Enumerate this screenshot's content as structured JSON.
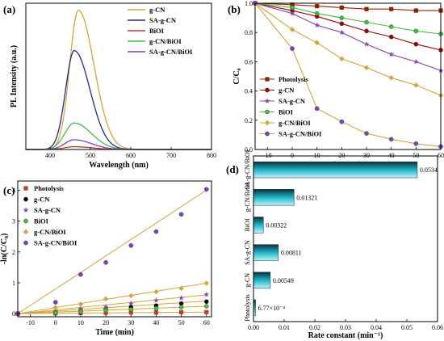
{
  "chart_data": [
    {
      "id": "a",
      "type": "line",
      "panel_label": "(a)",
      "xlabel": "Wavelength (nm)",
      "ylabel": "PL Intensity (a.u.)",
      "xlim": [
        340,
        800
      ],
      "xticks": [
        400,
        500,
        600,
        700,
        800
      ],
      "legend_position": "top-right",
      "series": [
        {
          "name": "g-CN",
          "color": "#d4a437",
          "peak_x": 470,
          "peak_y": 100,
          "width": 55
        },
        {
          "name": "SA-g-CN",
          "color": "#1f2a8a",
          "peak_x": 460,
          "peak_y": 71,
          "width": 55
        },
        {
          "name": "BiOI",
          "color": "#c0392b",
          "peak_x": 460,
          "peak_y": 2,
          "width": 60
        },
        {
          "name": "g-CN/BiOI",
          "color": "#3fbf3f",
          "peak_x": 460,
          "peak_y": 19,
          "width": 60
        },
        {
          "name": "SA-g-CN/BiOI",
          "color": "#7b3fc9",
          "peak_x": 460,
          "peak_y": 7,
          "width": 60
        }
      ]
    },
    {
      "id": "b",
      "type": "line",
      "panel_label": "(b)",
      "xlabel": "Time (min)",
      "ylabel": "C/C₀",
      "xlim": [
        -15,
        60
      ],
      "ylim": [
        0.0,
        1.0
      ],
      "xticks": [
        -10,
        0,
        10,
        20,
        30,
        40,
        50,
        60
      ],
      "yticks": [
        0.0,
        0.2,
        0.4,
        0.6,
        0.8,
        1.0
      ],
      "ytick_labels": [
        "0.0",
        "0.2",
        "0.4",
        "0.6",
        "0.8",
        "1.0"
      ],
      "legend_position": "bottom-left",
      "x": [
        -15,
        0,
        10,
        20,
        30,
        40,
        50,
        60
      ],
      "series": [
        {
          "name": "Photolysis",
          "color": "#8b2500",
          "marker": "square",
          "values": [
            1.0,
            0.99,
            0.98,
            0.97,
            0.96,
            0.96,
            0.95,
            0.95
          ]
        },
        {
          "name": "g-CN",
          "color": "#a00000",
          "marker": "circle",
          "values": [
            1.0,
            0.95,
            0.91,
            0.86,
            0.81,
            0.77,
            0.72,
            0.68
          ]
        },
        {
          "name": "SA-g-CN",
          "color": "#8e44ad",
          "marker": "star",
          "values": [
            1.0,
            0.93,
            0.85,
            0.8,
            0.72,
            0.65,
            0.6,
            0.54
          ]
        },
        {
          "name": "BiOI",
          "color": "#3fbf3f",
          "marker": "circle",
          "values": [
            1.0,
            0.97,
            0.93,
            0.9,
            0.87,
            0.84,
            0.81,
            0.79
          ]
        },
        {
          "name": "g-CN/BiOI",
          "color": "#d4a437",
          "marker": "diamond",
          "values": [
            1.0,
            0.82,
            0.73,
            0.62,
            0.56,
            0.49,
            0.44,
            0.37
          ]
        },
        {
          "name": "SA-g-CN/BiOI",
          "color": "#7b3fc9",
          "marker": "circle",
          "line_color": "#d4a437",
          "values": [
            1.0,
            0.69,
            0.28,
            0.19,
            0.11,
            0.07,
            0.04,
            0.02
          ]
        }
      ]
    },
    {
      "id": "c",
      "type": "scatter",
      "panel_label": "(c)",
      "xlabel": "Time (min)",
      "ylabel": "-ln(C/C₀)",
      "xlim": [
        -15,
        62
      ],
      "ylim": [
        -0.1,
        4.3
      ],
      "xticks": [
        -10,
        0,
        10,
        20,
        30,
        40,
        50,
        60
      ],
      "yticks": [
        0,
        1,
        2,
        3,
        4
      ],
      "legend_position": "top-left",
      "fit_color": "#d4a437",
      "x": [
        -15,
        0,
        10,
        20,
        30,
        40,
        50,
        60
      ],
      "series": [
        {
          "name": "Photolysis",
          "color": "#c0392b",
          "marker": "square",
          "slope": 0.000677,
          "values": [
            0,
            0.01,
            0.02,
            0.03,
            0.04,
            0.04,
            0.05,
            0.05
          ]
        },
        {
          "name": "g-CN",
          "color": "#000000",
          "marker": "circle",
          "slope": 0.00549,
          "values": [
            0,
            0.05,
            0.09,
            0.15,
            0.21,
            0.26,
            0.33,
            0.39
          ]
        },
        {
          "name": "SA-g-CN",
          "color": "#8e44ad",
          "marker": "star",
          "slope": 0.00811,
          "values": [
            0,
            0.07,
            0.16,
            0.22,
            0.33,
            0.43,
            0.51,
            0.62
          ]
        },
        {
          "name": "BiOI",
          "color": "#3fbf3f",
          "marker": "circle",
          "slope": 0.00322,
          "values": [
            0,
            0.03,
            0.07,
            0.11,
            0.14,
            0.17,
            0.21,
            0.24
          ]
        },
        {
          "name": "g-CN/BiOI",
          "color": "#d4a437",
          "marker": "diamond",
          "slope": 0.01321,
          "values": [
            0,
            0.2,
            0.31,
            0.48,
            0.58,
            0.71,
            0.82,
            0.99
          ]
        },
        {
          "name": "SA-g-CN/BiOI",
          "color": "#7b3fc9",
          "marker": "circle",
          "slope": 0.0534,
          "values": [
            0,
            0.37,
            1.27,
            1.66,
            2.21,
            2.66,
            3.22,
            4.03
          ]
        }
      ]
    },
    {
      "id": "d",
      "type": "bar",
      "orientation": "horizontal",
      "panel_label": "(d)",
      "xlabel": "Rate constant (min⁻¹)",
      "xlim": [
        0,
        0.06
      ],
      "xticks": [
        0.0,
        0.01,
        0.02,
        0.03,
        0.04,
        0.05,
        0.06
      ],
      "xtick_labels": [
        "0.00",
        "0.01",
        "0.02",
        "0.03",
        "0.04",
        "0.05",
        "0.06"
      ],
      "bar_color": "#1fb5c8",
      "categories": [
        "SA-g-CN/BiOI",
        "g-CN/BiOI",
        "BiOI",
        "SA-g-CN",
        "g-CN",
        "Photolysis"
      ],
      "values": [
        0.0534,
        0.01321,
        0.00322,
        0.00811,
        0.00549,
        0.000677
      ],
      "value_labels": [
        "0.0534",
        "0.01321",
        "0.00322",
        "0.00811",
        "0.00549",
        "6.77×10⁻⁴"
      ]
    }
  ]
}
